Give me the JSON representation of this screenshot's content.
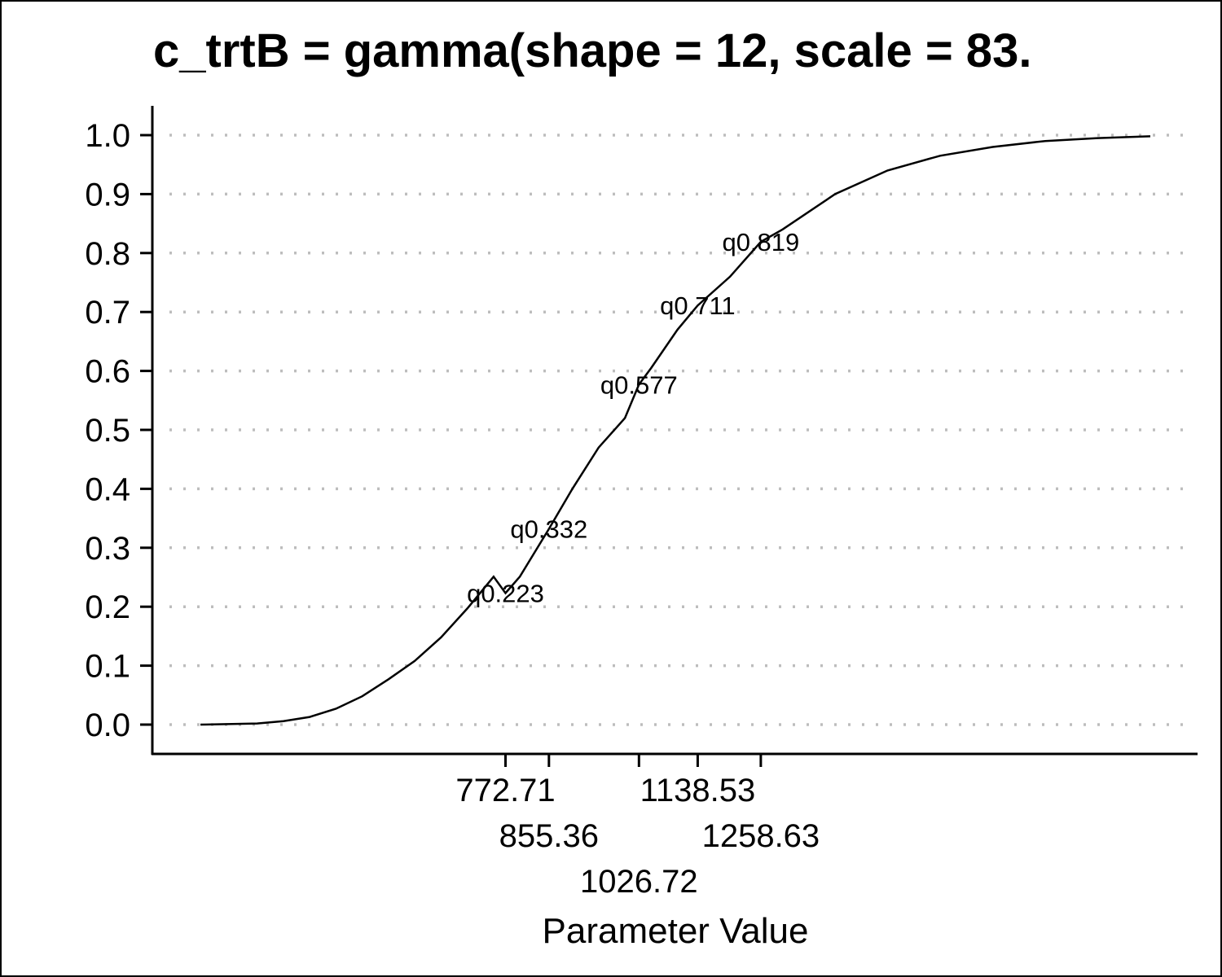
{
  "chart_data": {
    "type": "line",
    "title": "c_trtB = gamma(shape = 12, scale = 83.",
    "xlabel": "Parameter Value",
    "ylabel": "",
    "ylim": [
      0,
      1
    ],
    "y_ticks": [
      "0.0",
      "0.1",
      "0.2",
      "0.3",
      "0.4",
      "0.5",
      "0.6",
      "0.7",
      "0.8",
      "0.9",
      "1.0"
    ],
    "x_ticks": [
      {
        "value": 772.71,
        "label": "772.71"
      },
      {
        "value": 855.36,
        "label": "855.36"
      },
      {
        "value": 1026.72,
        "label": "1026.72"
      },
      {
        "value": 1138.53,
        "label": "1138.53"
      },
      {
        "value": 1258.63,
        "label": "1258.63"
      }
    ],
    "grid": "horizontal dotted",
    "series": [
      {
        "x": [
          192,
          300,
          350,
          400,
          450,
          500,
          550,
          600,
          650,
          700,
          750,
          772.71,
          800,
          855.36,
          900,
          950,
          1000,
          1026.72,
          1050,
          1100,
          1138.53,
          1200,
          1258.63,
          1300,
          1400,
          1500,
          1600,
          1700,
          1800,
          1900,
          2000
        ],
        "y": [
          0.0,
          0.002,
          0.006,
          0.013,
          0.027,
          0.048,
          0.077,
          0.108,
          0.148,
          0.197,
          0.251,
          0.223,
          0.251,
          0.332,
          0.4,
          0.47,
          0.52,
          0.577,
          0.605,
          0.67,
          0.711,
          0.76,
          0.819,
          0.84,
          0.9,
          0.94,
          0.965,
          0.98,
          0.99,
          0.995,
          0.998
        ]
      }
    ],
    "quantile_labels": [
      {
        "x": 772.71,
        "y": 0.223,
        "text": "q0.223"
      },
      {
        "x": 855.36,
        "y": 0.332,
        "text": "q0.332"
      },
      {
        "x": 1026.72,
        "y": 0.577,
        "text": "q0.577"
      },
      {
        "x": 1138.53,
        "y": 0.711,
        "text": "q0.711"
      },
      {
        "x": 1258.63,
        "y": 0.819,
        "text": "q0.819"
      }
    ]
  }
}
